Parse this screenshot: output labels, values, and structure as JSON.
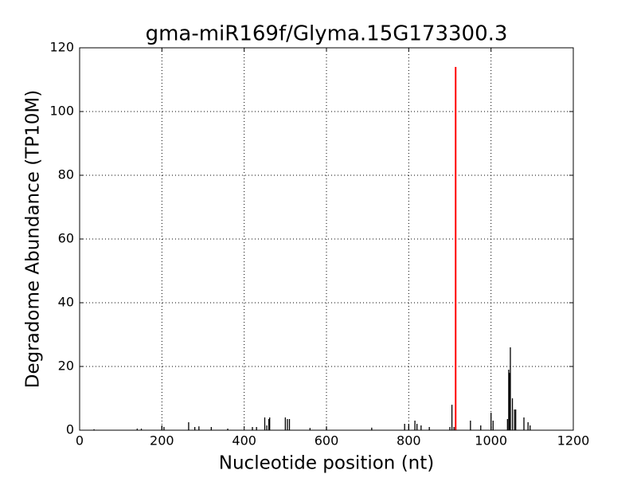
{
  "chart_data": {
    "type": "spike",
    "title": "gma-miR169f/Glyma.15G173300.3",
    "xlabel": "Nucleotide position (nt)",
    "ylabel": "Degradome Abundance (TP10M)",
    "series": [
      {
        "color": "#000000",
        "x": [
          35,
          140,
          150,
          200,
          205,
          265,
          280,
          290,
          320,
          360,
          420,
          430,
          450,
          455,
          460,
          462,
          500,
          505,
          510,
          560,
          600,
          710,
          790,
          800,
          815,
          820,
          830,
          850,
          900,
          905,
          910,
          950,
          975,
          1000,
          1005,
          1040,
          1043,
          1045,
          1047,
          1052,
          1057,
          1060,
          1080,
          1090,
          1095
        ],
        "values": [
          0.3,
          0.5,
          0.5,
          1.5,
          1,
          2.5,
          1,
          1.2,
          1,
          0.5,
          1,
          1,
          4,
          1.5,
          3.5,
          4,
          4,
          3.5,
          3.5,
          0.7,
          1,
          0.8,
          2,
          2,
          3,
          2,
          1.5,
          1,
          1,
          8,
          1,
          3,
          1.5,
          5.5,
          3,
          3.5,
          19,
          18,
          26,
          10,
          6.5,
          6.5,
          4,
          2.5,
          1.5
        ]
      },
      {
        "color": "#ff0000",
        "x": [
          914
        ],
        "values": [
          114
        ]
      }
    ],
    "xlim": [
      0,
      1200
    ],
    "xticks": [
      0,
      200,
      400,
      600,
      800,
      1000,
      1200
    ],
    "ylim": [
      0,
      120
    ],
    "yticks": [
      0,
      20,
      40,
      60,
      80,
      100,
      120
    ],
    "grid": true
  }
}
